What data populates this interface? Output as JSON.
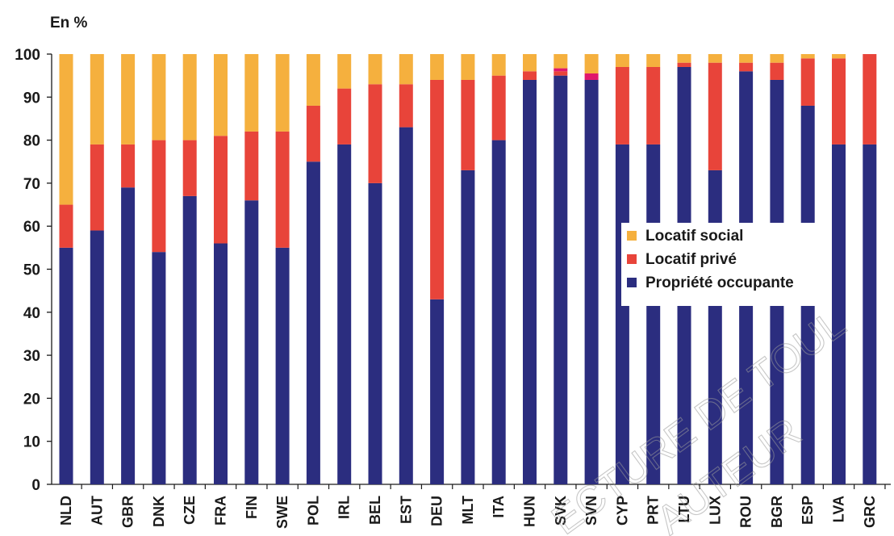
{
  "chart_data": {
    "type": "bar",
    "stacked": true,
    "unit_label": "En %",
    "ylim": [
      0,
      100
    ],
    "yticks": [
      0,
      10,
      20,
      30,
      40,
      50,
      60,
      70,
      80,
      90,
      100
    ],
    "categories": [
      "NLD",
      "AUT",
      "GBR",
      "DNK",
      "CZE",
      "FRA",
      "FIN",
      "SWE",
      "POL",
      "IRL",
      "BEL",
      "EST",
      "DEU",
      "MLT",
      "ITA",
      "HUN",
      "SVK",
      "SVN",
      "CYP",
      "PRT",
      "LTU",
      "LUX",
      "ROU",
      "BGR",
      "ESP",
      "LVA",
      "GRC"
    ],
    "series": [
      {
        "name": "Propriété occupante",
        "color": "#2b2d7f",
        "values": [
          55,
          59,
          69,
          54,
          67,
          56,
          66,
          55,
          75,
          79,
          70,
          83,
          43,
          73,
          80,
          94,
          95,
          94,
          79,
          79,
          97,
          73,
          96,
          94,
          88,
          79,
          79
        ]
      },
      {
        "name": "Locatif privé",
        "color": "#e8443a",
        "values": [
          10,
          20,
          10,
          26,
          13,
          25,
          16,
          27,
          13,
          13,
          23,
          10,
          51,
          21,
          15,
          2,
          1,
          0,
          18,
          18,
          1,
          25,
          2,
          4,
          11,
          20,
          21
        ]
      },
      {
        "name": "",
        "color": "#e0186c",
        "values": [
          0,
          0,
          0,
          0,
          0,
          0,
          0,
          0,
          0,
          0,
          0,
          0,
          0,
          0,
          0,
          0,
          0.7,
          1.5,
          0,
          0,
          0,
          0,
          0,
          0,
          0,
          0,
          0
        ]
      },
      {
        "name": "Locatif social",
        "color": "#f5b03e",
        "values": [
          35,
          21,
          21,
          20,
          20,
          19,
          18,
          18,
          12,
          8,
          7,
          7,
          6,
          6,
          5,
          4,
          3.3,
          4.5,
          3,
          3,
          2,
          2,
          2,
          2,
          1,
          1,
          0
        ]
      }
    ],
    "legend": {
      "position": "middle-right",
      "items": [
        "Locatif social",
        "Locatif privé",
        "Propriété occupante"
      ]
    },
    "grid": false
  },
  "watermark": {
    "lines": [
      "ECTURE DE TOUL",
      "AUTEUR"
    ]
  }
}
